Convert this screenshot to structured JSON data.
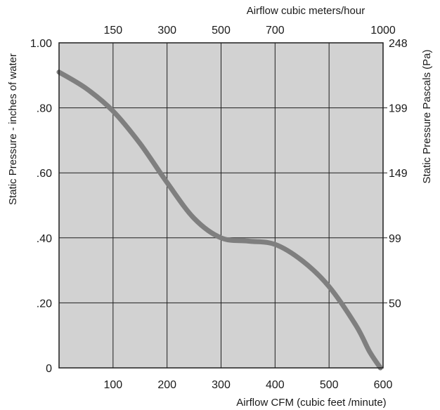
{
  "chart_data": {
    "type": "line",
    "title": "",
    "xlabel": "Airflow  CFM (cubic feet /minute)",
    "ylabel": "Static Pressure - inches of water",
    "x2label": "Airflow cubic meters/hour",
    "y2label": "Static Pressure Pascals (Pa)",
    "xlim": [
      0,
      600
    ],
    "ylim": [
      0,
      1.0
    ],
    "grid": true,
    "x_ticks": [
      {
        "value": 100,
        "label": "100"
      },
      {
        "value": 200,
        "label": "200"
      },
      {
        "value": 300,
        "label": "300"
      },
      {
        "value": 400,
        "label": "400"
      },
      {
        "value": 500,
        "label": "500"
      },
      {
        "value": 600,
        "label": "600"
      }
    ],
    "y_ticks": [
      {
        "value": 0,
        "label": "0"
      },
      {
        "value": 0.2,
        "label": ".20"
      },
      {
        "value": 0.4,
        "label": ".40"
      },
      {
        "value": 0.6,
        "label": ".60"
      },
      {
        "value": 0.8,
        "label": ".80"
      },
      {
        "value": 1.0,
        "label": "1.00"
      }
    ],
    "x2_ticks": [
      {
        "value": 100,
        "label": "150"
      },
      {
        "value": 200,
        "label": "300"
      },
      {
        "value": 300,
        "label": "500"
      },
      {
        "value": 400,
        "label": "700"
      },
      {
        "value": 600,
        "label": "1000"
      }
    ],
    "y2_ticks": [
      {
        "value": 1.0,
        "label": "248"
      },
      {
        "value": 0.8,
        "label": "199"
      },
      {
        "value": 0.6,
        "label": "149"
      },
      {
        "value": 0.4,
        "label": "99"
      },
      {
        "value": 0.2,
        "label": "50"
      }
    ],
    "series": [
      {
        "x": [
          0,
          50,
          100,
          150,
          200,
          250,
          300,
          350,
          400,
          450,
          500,
          550,
          575,
          595
        ],
        "y": [
          0.91,
          0.86,
          0.79,
          0.69,
          0.57,
          0.46,
          0.4,
          0.39,
          0.38,
          0.33,
          0.25,
          0.13,
          0.05,
          0.0
        ]
      }
    ],
    "colors": {
      "plot_background": "#d2d2d2",
      "grid": "#1e1e1e",
      "curve": "#7f7f7f"
    }
  }
}
